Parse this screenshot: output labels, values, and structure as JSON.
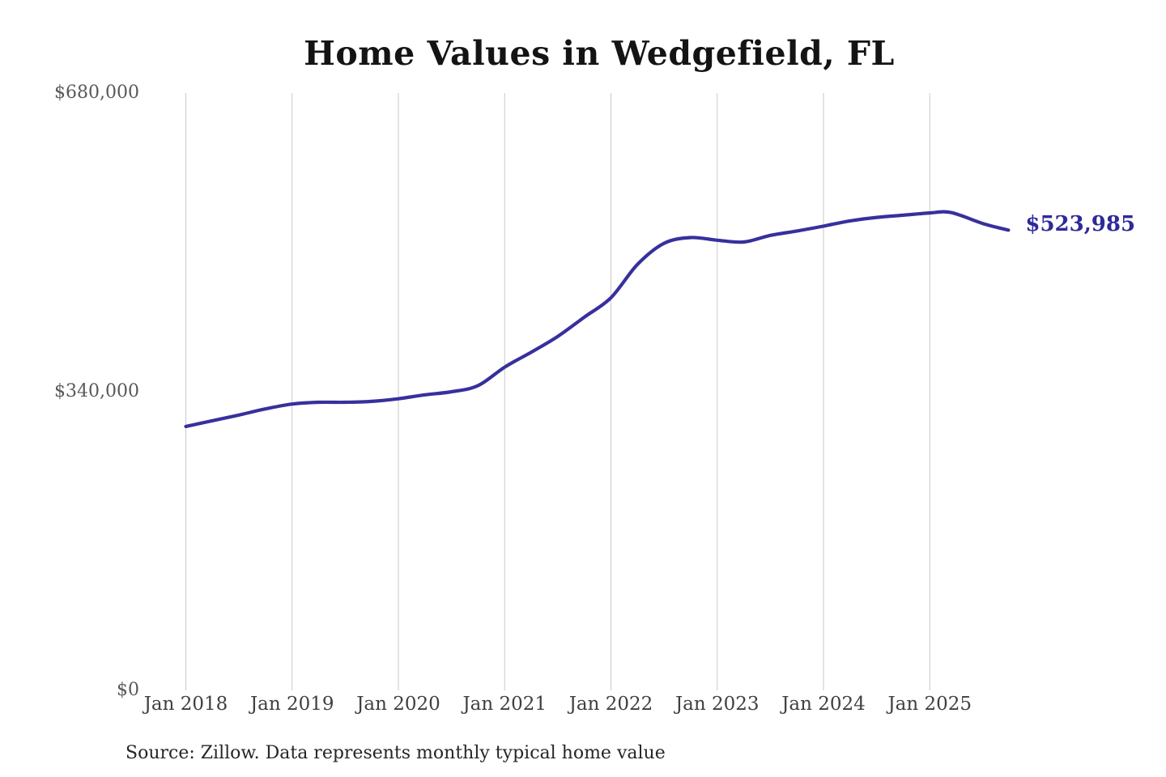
{
  "title": "Home Values in Wedgefield, FL",
  "source_note": "Source: Zillow. Data represents monthly typical home value",
  "end_label": "$523,985",
  "colors": {
    "line": "#37309c",
    "end_label": "#2e2a99",
    "grid": "#c9c9c9",
    "title": "#141414",
    "y_tick_text": "#595959",
    "x_tick_text": "#404040",
    "source_text": "#262626",
    "background": "#ffffff"
  },
  "chart_data": {
    "type": "line",
    "title": "Home Values in Wedgefield, FL",
    "series_name": "Monthly typical home value",
    "x_unit": "decimal_year",
    "x": [
      2018.0,
      2018.25,
      2018.5,
      2018.75,
      2019.0,
      2019.25,
      2019.5,
      2019.75,
      2020.0,
      2020.25,
      2020.5,
      2020.75,
      2021.0,
      2021.25,
      2021.5,
      2021.75,
      2022.0,
      2022.25,
      2022.5,
      2022.75,
      2023.0,
      2023.25,
      2023.5,
      2023.75,
      2024.0,
      2024.25,
      2024.5,
      2024.75,
      2025.0,
      2025.2,
      2025.5,
      2025.74
    ],
    "values": [
      300500,
      307000,
      313500,
      320500,
      326000,
      328000,
      328000,
      329000,
      332000,
      336500,
      340000,
      347000,
      368000,
      385000,
      403000,
      425000,
      447000,
      485000,
      509000,
      515500,
      512500,
      510500,
      518000,
      523000,
      528500,
      534500,
      538500,
      541000,
      543500,
      544000,
      531500,
      523985
    ],
    "last_value": 523985,
    "last_value_label": "$523,985",
    "x_ticks": [
      {
        "year": 2018,
        "label": "Jan 2018"
      },
      {
        "year": 2019,
        "label": "Jan 2019"
      },
      {
        "year": 2020,
        "label": "Jan 2020"
      },
      {
        "year": 2021,
        "label": "Jan 2021"
      },
      {
        "year": 2022,
        "label": "Jan 2022"
      },
      {
        "year": 2023,
        "label": "Jan 2023"
      },
      {
        "year": 2024,
        "label": "Jan 2024"
      },
      {
        "year": 2025,
        "label": "Jan 2025"
      }
    ],
    "y_ticks": [
      {
        "value": 680000,
        "label": "$680,000"
      },
      {
        "value": 340000,
        "label": "$340,000"
      },
      {
        "value": 0,
        "label": "$0"
      }
    ],
    "ylim": [
      0,
      680000
    ],
    "xlim_years": [
      2018.0,
      2025.74
    ],
    "grid": "vertical-only",
    "legend": "none"
  }
}
